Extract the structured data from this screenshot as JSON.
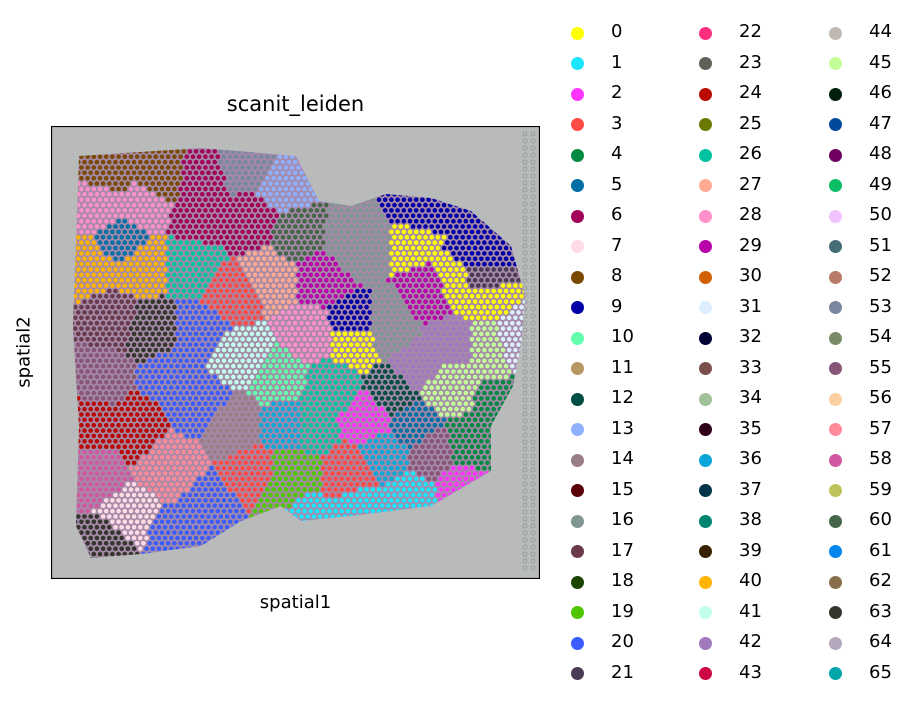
{
  "chart_data": {
    "type": "scatter",
    "title": "scanit_leiden",
    "xlabel": "spatial1",
    "ylabel": "spatial2",
    "legend_placement": "right, 3 columns",
    "background": "tissue image (H&E), grey slide",
    "categories": [
      "0",
      "1",
      "2",
      "3",
      "4",
      "5",
      "6",
      "7",
      "8",
      "9",
      "10",
      "11",
      "12",
      "13",
      "14",
      "15",
      "16",
      "17",
      "18",
      "19",
      "20",
      "21",
      "22",
      "23",
      "24",
      "25",
      "26",
      "27",
      "28",
      "29",
      "30",
      "31",
      "32",
      "33",
      "34",
      "35",
      "36",
      "37",
      "38",
      "39",
      "40",
      "41",
      "42",
      "43",
      "44",
      "45",
      "46",
      "47",
      "48",
      "49",
      "50",
      "51",
      "52",
      "53",
      "54",
      "55",
      "56",
      "57",
      "58",
      "59",
      "60",
      "61",
      "62",
      "63",
      "64",
      "65"
    ],
    "colors": [
      "#ffff00",
      "#1ce6ff",
      "#ff34ff",
      "#ff4a46",
      "#008941",
      "#006fa6",
      "#a30059",
      "#ffdbe5",
      "#7a4900",
      "#0000a6",
      "#63ffac",
      "#b79762",
      "#004d43",
      "#8fb0ff",
      "#997d87",
      "#5a0007",
      "#809693",
      "#6a3a4c",
      "#1b4400",
      "#4fc601",
      "#3b5dff",
      "#4a3b53",
      "#ff2f80",
      "#61615a",
      "#ba0900",
      "#6b7900",
      "#00c2a0",
      "#ffaa92",
      "#ff90c9",
      "#b903aa",
      "#d16100",
      "#ddefff",
      "#000035",
      "#7b4f4b",
      "#a1c299",
      "#300018",
      "#0aa6d8",
      "#013349",
      "#00846f",
      "#372101",
      "#ffb500",
      "#c2ffed",
      "#a079bf",
      "#cc0744",
      "#c0b9b2",
      "#c2ff99",
      "#001e09",
      "#00489c",
      "#6f0062",
      "#0cbd66",
      "#eec3ff",
      "#456d75",
      "#b77b68",
      "#7a87a1",
      "#788d66",
      "#885578",
      "#fad09f",
      "#ff8a9a",
      "#d157a0",
      "#bec459",
      "#456648",
      "#0086ed",
      "#886f4c",
      "#34362d",
      "#b4a8bd",
      "#00a6aa"
    ]
  }
}
